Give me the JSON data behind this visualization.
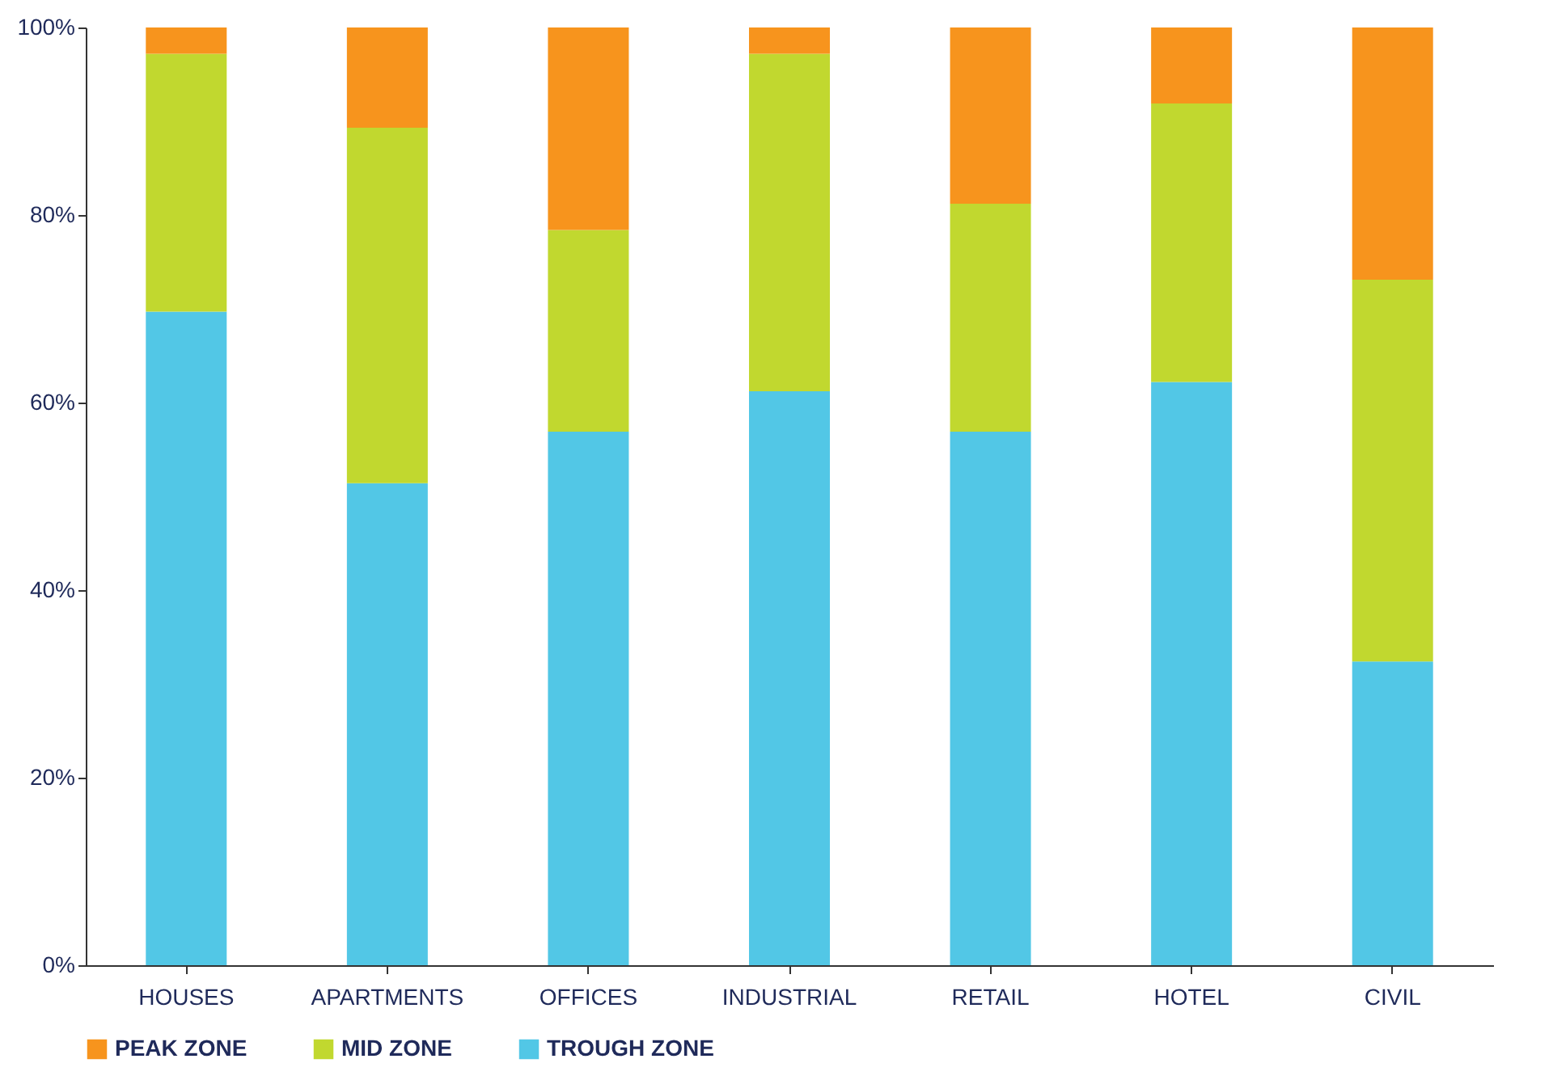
{
  "chart_data": {
    "type": "bar",
    "stacked": true,
    "categories": [
      "HOUSES",
      "APARTMENTS",
      "OFFICES",
      "INDUSTRIAL",
      "RETAIL",
      "HOTEL",
      "CIVIL"
    ],
    "series": [
      {
        "name": "TROUGH ZONE",
        "color": "#52c7e6",
        "values": [
          69.7,
          51.4,
          56.9,
          61.2,
          56.9,
          62.2,
          32.4
        ]
      },
      {
        "name": "MID ZONE",
        "color": "#c1d82f",
        "values": [
          27.5,
          37.9,
          21.5,
          36.0,
          24.3,
          29.7,
          40.7
        ]
      },
      {
        "name": "PEAK ZONE",
        "color": "#f7941d",
        "values": [
          2.8,
          10.7,
          21.6,
          2.8,
          18.8,
          8.1,
          26.9
        ]
      }
    ],
    "ylim": [
      0,
      100
    ],
    "yticks": [
      {
        "value": 0,
        "label": "0%"
      },
      {
        "value": 20,
        "label": "20%"
      },
      {
        "value": 40,
        "label": "40%"
      },
      {
        "value": 60,
        "label": "60%"
      },
      {
        "value": 80,
        "label": "80%"
      },
      {
        "value": 100,
        "label": "100%"
      }
    ],
    "grid": false,
    "legend": "bottom"
  }
}
